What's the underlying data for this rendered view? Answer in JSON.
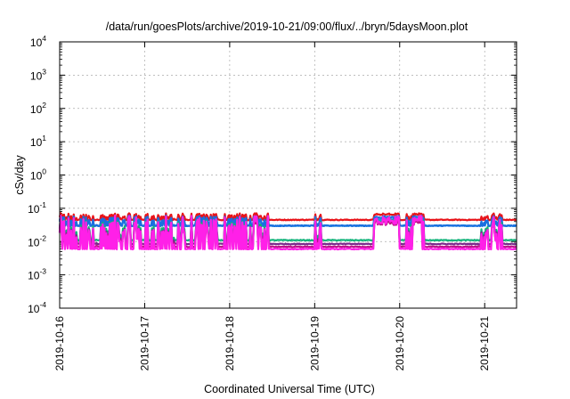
{
  "chart_data": {
    "type": "line",
    "title": "/data/run/goesPlots/archive/2019-10-21/09:00/flux/../bryn/5daysMoon.plot",
    "xlabel": "Coordinated Universal Time (UTC)",
    "ylabel": "cSv/day",
    "y_scale": "log",
    "ylim": [
      0.0001,
      10000
    ],
    "xlim": [
      "2019-10-16 00:00",
      "2019-10-21 09:00"
    ],
    "y_ticks": [
      {
        "base": "10",
        "exp": "4"
      },
      {
        "base": "10",
        "exp": "3"
      },
      {
        "base": "10",
        "exp": "2"
      },
      {
        "base": "10",
        "exp": "1"
      },
      {
        "base": "10",
        "exp": "0"
      },
      {
        "base": "10",
        "exp": "-1"
      },
      {
        "base": "10",
        "exp": "-2"
      },
      {
        "base": "10",
        "exp": "-3"
      },
      {
        "base": "10",
        "exp": "-4"
      }
    ],
    "x_ticks": [
      "2019-10-16",
      "2019-10-17",
      "2019-10-18",
      "2019-10-19",
      "2019-10-20",
      "2019-10-21"
    ],
    "grid": true,
    "legend": "none",
    "spike_intervals": [
      [
        0.0,
        1.5
      ],
      [
        1.55,
        2.45
      ],
      [
        3.0,
        3.1
      ],
      [
        3.8,
        3.9
      ],
      [
        4.05,
        4.3
      ],
      [
        4.95,
        5.2
      ]
    ],
    "step_up_intervals": [
      [
        3.7,
        4.0
      ],
      [
        4.15,
        4.25
      ]
    ],
    "series": [
      {
        "color": "#e8141a",
        "base": 0.045,
        "peak": 0.07
      },
      {
        "color": "#1a9bd9",
        "base": 0.03,
        "peak": 0.05
      },
      {
        "color": "#1a6fe0",
        "base": 0.03,
        "peak": 0.06
      },
      {
        "color": "#11b37a",
        "base": 0.011,
        "peak": 0.055
      },
      {
        "color": "#7a2a8c",
        "base": 0.0085,
        "peak": 0.05
      },
      {
        "color": "#c0128a",
        "base": 0.007,
        "peak": 0.05
      },
      {
        "color": "#ff20e8",
        "base": 0.006,
        "peak": 0.06
      }
    ]
  }
}
